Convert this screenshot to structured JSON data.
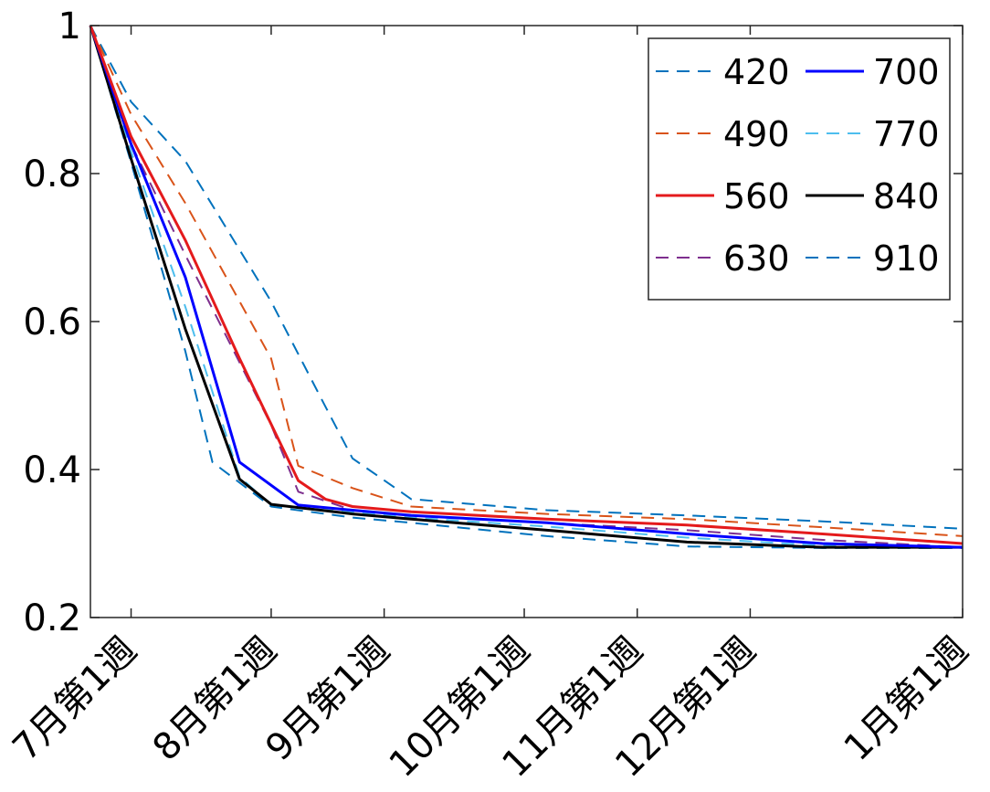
{
  "chart_data": {
    "type": "line",
    "title": "",
    "xlabel": "",
    "ylabel": "",
    "xlim": [
      "2017-06-22",
      "2018-01-01"
    ],
    "ylim": [
      0.2,
      1.0
    ],
    "yticks": [
      {
        "value": 0.2,
        "label": "0.2"
      },
      {
        "value": 0.4,
        "label": "0.4"
      },
      {
        "value": 0.6,
        "label": "0.6"
      },
      {
        "value": 0.8,
        "label": "0.8"
      },
      {
        "value": 1.0,
        "label": "1"
      }
    ],
    "xticks": [
      {
        "date": "2017-07-01",
        "label": "7月第1週"
      },
      {
        "date": "2017-08-01",
        "label": "8月第1週"
      },
      {
        "date": "2017-08-26",
        "label": "9月第1週"
      },
      {
        "date": "2017-09-26",
        "label": "10月第1週"
      },
      {
        "date": "2017-10-21",
        "label": "11月第1週"
      },
      {
        "date": "2017-11-15",
        "label": "12月第1週"
      },
      {
        "date": "2018-01-01",
        "label": "1月第1週"
      }
    ],
    "grid": false,
    "legend": {
      "placement": "top-right",
      "columns": 2
    },
    "series": [
      {
        "name": "420",
        "color": "#0072BD",
        "dash": "dashed",
        "x": [
          "2017-06-22",
          "2017-07-01",
          "2017-07-13",
          "2017-08-01",
          "2017-08-13",
          "2017-08-19",
          "2017-09-01",
          "2017-10-01",
          "2017-11-01",
          "2017-12-01",
          "2018-01-01"
        ],
        "y": [
          1.0,
          0.897,
          0.817,
          0.627,
          0.485,
          0.415,
          0.36,
          0.345,
          0.338,
          0.33,
          0.32
        ]
      },
      {
        "name": "490",
        "color": "#D95319",
        "dash": "dashed",
        "x": [
          "2017-06-22",
          "2017-07-01",
          "2017-07-13",
          "2017-08-01",
          "2017-08-07",
          "2017-08-19",
          "2017-09-01",
          "2017-10-01",
          "2017-11-01",
          "2017-12-01",
          "2018-01-01"
        ],
        "y": [
          1.0,
          0.88,
          0.76,
          0.55,
          0.405,
          0.375,
          0.35,
          0.34,
          0.333,
          0.322,
          0.31
        ]
      },
      {
        "name": "560",
        "color": "#E41A1C",
        "dash": "solid",
        "x": [
          "2017-06-22",
          "2017-07-01",
          "2017-07-13",
          "2017-07-25",
          "2017-08-07",
          "2017-08-13",
          "2017-08-19",
          "2017-09-01",
          "2017-10-01",
          "2017-11-01",
          "2017-12-01",
          "2018-01-01"
        ],
        "y": [
          1.0,
          0.85,
          0.71,
          0.55,
          0.385,
          0.36,
          0.35,
          0.343,
          0.333,
          0.325,
          0.313,
          0.3
        ]
      },
      {
        "name": "630",
        "color": "#7E2F8E",
        "dash": "dashed",
        "x": [
          "2017-06-22",
          "2017-07-01",
          "2017-07-13",
          "2017-08-01",
          "2017-08-07",
          "2017-08-19",
          "2017-09-01",
          "2017-10-01",
          "2017-11-01",
          "2017-12-01",
          "2018-01-01"
        ],
        "y": [
          1.0,
          0.84,
          0.69,
          0.46,
          0.37,
          0.345,
          0.338,
          0.328,
          0.318,
          0.305,
          0.295
        ]
      },
      {
        "name": "700",
        "color": "#0000FF",
        "dash": "solid",
        "x": [
          "2017-06-22",
          "2017-07-01",
          "2017-07-13",
          "2017-07-25",
          "2017-08-07",
          "2017-08-19",
          "2017-09-01",
          "2017-10-01",
          "2017-11-01",
          "2017-12-01",
          "2018-01-01"
        ],
        "y": [
          1.0,
          0.84,
          0.66,
          0.41,
          0.352,
          0.345,
          0.338,
          0.328,
          0.313,
          0.3,
          0.295
        ]
      },
      {
        "name": "770",
        "color": "#4DBEEE",
        "dash": "dashed",
        "x": [
          "2017-06-22",
          "2017-07-01",
          "2017-07-13",
          "2017-07-25",
          "2017-08-01",
          "2017-08-19",
          "2017-09-01",
          "2017-10-01",
          "2017-11-01",
          "2017-12-01",
          "2018-01-01"
        ],
        "y": [
          1.0,
          0.83,
          0.62,
          0.39,
          0.352,
          0.342,
          0.335,
          0.323,
          0.308,
          0.297,
          0.295
        ]
      },
      {
        "name": "840",
        "color": "#000000",
        "dash": "solid",
        "x": [
          "2017-06-22",
          "2017-07-01",
          "2017-07-13",
          "2017-07-25",
          "2017-08-01",
          "2017-08-19",
          "2017-09-01",
          "2017-10-01",
          "2017-11-01",
          "2017-12-01",
          "2018-01-01"
        ],
        "y": [
          1.0,
          0.82,
          0.59,
          0.387,
          0.353,
          0.34,
          0.333,
          0.318,
          0.302,
          0.295,
          0.295
        ]
      },
      {
        "name": "910",
        "color": "#0072BD",
        "dash": "dashed",
        "x": [
          "2017-06-22",
          "2017-07-01",
          "2017-07-13",
          "2017-07-19",
          "2017-08-01",
          "2017-08-19",
          "2017-09-01",
          "2017-10-01",
          "2017-11-01",
          "2017-12-01",
          "2018-01-01"
        ],
        "y": [
          1.0,
          0.815,
          0.56,
          0.41,
          0.35,
          0.335,
          0.328,
          0.31,
          0.296,
          0.294,
          0.294
        ]
      }
    ]
  }
}
